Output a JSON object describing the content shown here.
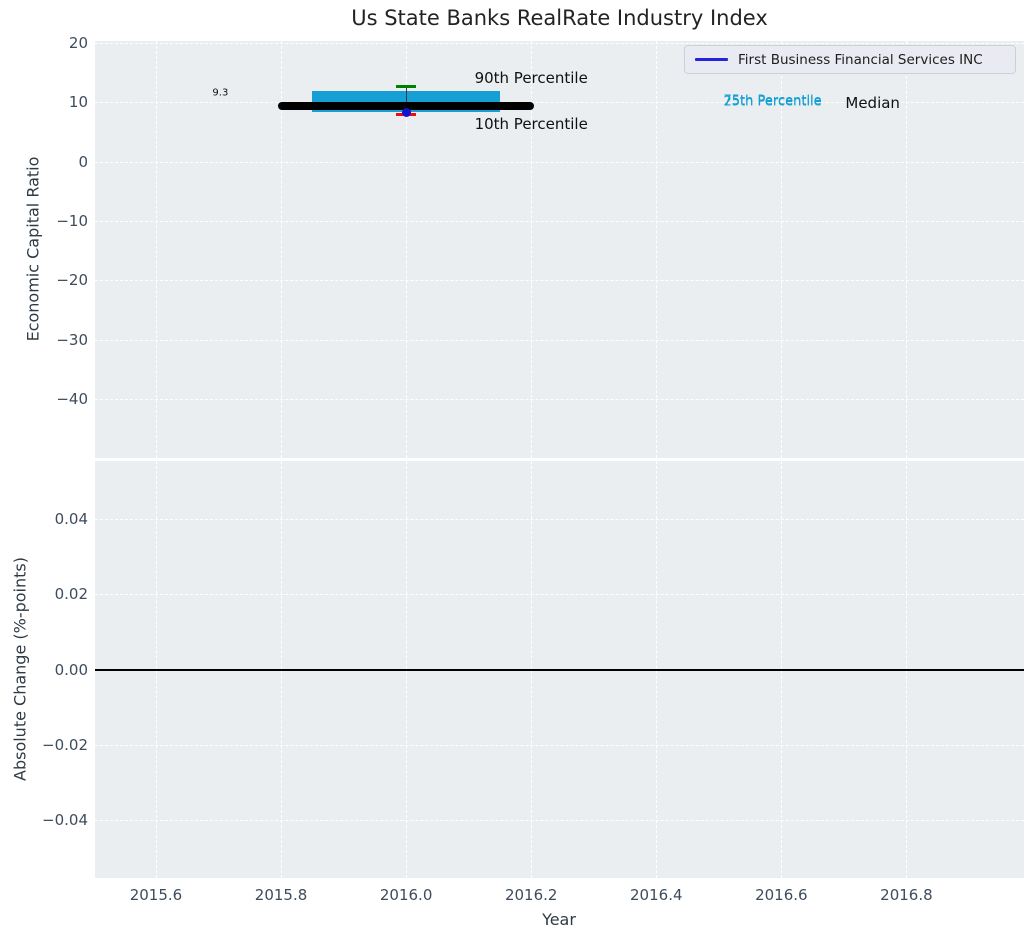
{
  "chart_data": {
    "type": "boxplot",
    "title": "Us State Banks RealRate Industry Index",
    "xlabel": "Year",
    "grid": true,
    "background_color": "#eaeef0",
    "xlim": [
      2015.5025,
      2016.988
    ],
    "xticks": [
      {
        "v": 2015.6,
        "label": "2015.6"
      },
      {
        "v": 2015.8,
        "label": "2015.8"
      },
      {
        "v": 2016.0,
        "label": "2016.0"
      },
      {
        "v": 2016.2,
        "label": "2016.2"
      },
      {
        "v": 2016.4,
        "label": "2016.4"
      },
      {
        "v": 2016.6,
        "label": "2016.6"
      },
      {
        "v": 2016.8,
        "label": "2016.8"
      }
    ],
    "legend": {
      "position": "upper right",
      "entries": [
        {
          "label": "First Business Financial Services INC",
          "color": "#2424dd"
        }
      ]
    },
    "panels": [
      {
        "name": "economic-capital-ratio",
        "ylabel": "Economic Capital Ratio",
        "ylim": [
          -49.9,
          20.3
        ],
        "yticks": [
          {
            "v": 20,
            "label": "20"
          },
          {
            "v": 10,
            "label": "10"
          },
          {
            "v": 0,
            "label": "0"
          },
          {
            "v": -10,
            "label": "−10"
          },
          {
            "v": -20,
            "label": "−20"
          },
          {
            "v": -30,
            "label": "−30"
          },
          {
            "v": -40,
            "label": "−40"
          }
        ]
      },
      {
        "name": "absolute-change",
        "ylabel": "Absolute Change (%-points)",
        "ylim": [
          -0.0553,
          0.0553
        ],
        "yticks": [
          {
            "v": 0.04,
            "label": "0.04"
          },
          {
            "v": 0.02,
            "label": "0.02"
          },
          {
            "v": 0,
            "label": "0.00"
          },
          {
            "v": -0.02,
            "label": "−0.02"
          },
          {
            "v": -0.04,
            "label": "−0.04"
          }
        ],
        "zero_line": 0
      }
    ],
    "boxplot": {
      "x": 2016.0,
      "p10": 7.9,
      "p25": 8.3,
      "median": 9.3,
      "p75": 11.8,
      "p90": 12.7,
      "box_half_width": 0.15,
      "median_half_width": 0.205,
      "cap_half_width": 0.016,
      "colors": {
        "box": "#169fd4",
        "median_line": "#000000",
        "p90_cap": "#008000",
        "p10_cap": "#e81010",
        "stem": "#3a3a3a"
      }
    },
    "company_point": {
      "name": "First Business Financial Services INC",
      "x": 2016.0,
      "y": 8.25,
      "color": "#1212cf"
    },
    "annotations": [
      {
        "text": "9.3",
        "x": 2015.703,
        "y": 11.55,
        "color": "#111111",
        "size": 10,
        "name": "median-value-label"
      },
      {
        "text": "90th Percentile",
        "x": 2016.2,
        "y": 14.07,
        "color": "#111111",
        "size": 15,
        "name": "p90-label"
      },
      {
        "text": "10th Percentile",
        "x": 2016.2,
        "y": 6.33,
        "color": "#111111",
        "size": 15,
        "name": "p10-label"
      },
      {
        "text": "75th Percentile",
        "x": 2016.586,
        "y": 10.28,
        "color": "#169fd4",
        "size": 13,
        "name": "p75-label"
      },
      {
        "text": "25th Percentile",
        "x": 2016.586,
        "y": 9.95,
        "color": "#169fd4",
        "size": 13,
        "name": "p25-label"
      },
      {
        "text": "Median",
        "x": 2016.746,
        "y": 9.86,
        "color": "#111111",
        "size": 15,
        "name": "median-label"
      }
    ]
  }
}
